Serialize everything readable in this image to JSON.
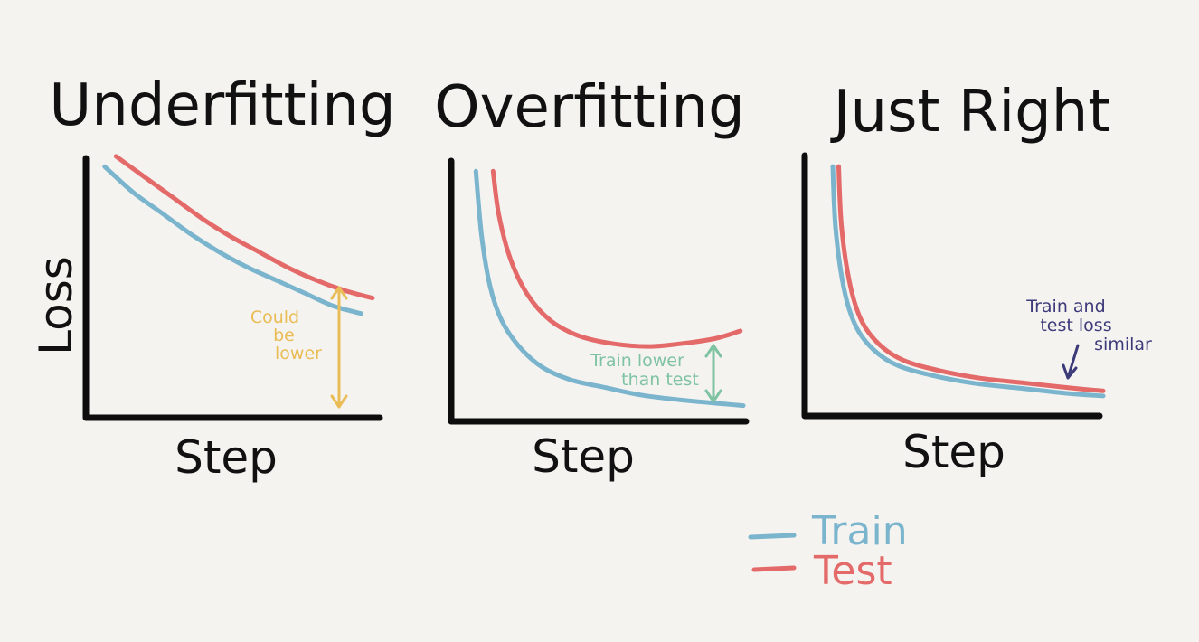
{
  "colors": {
    "background": "#f4f3f0",
    "axis": "#0d0d0d",
    "train": "#7ab4cd",
    "test": "#e46a6a",
    "annotation_underfitting": "#eabc55",
    "annotation_overfitting": "#7fc3a3",
    "annotation_just_right": "#3d3a7a"
  },
  "legend": {
    "placement": "bottom-right",
    "train_label": "Train",
    "test_label": "Test"
  },
  "chart_data": [
    {
      "type": "line",
      "title": "Underfitting",
      "xlabel": "Step",
      "ylabel": "Loss",
      "grid": false,
      "xlim": [
        0,
        10
      ],
      "ylim": [
        0,
        10
      ],
      "series": [
        {
          "name": "Train",
          "color": "#7ab4cd",
          "x": [
            0.5,
            1.5,
            2.5,
            3.5,
            4.5,
            5.5,
            6.5,
            7.5,
            8.5,
            9.5
          ],
          "y": [
            9.5,
            8.5,
            7.7,
            6.9,
            6.2,
            5.6,
            5.1,
            4.6,
            4.1,
            3.8
          ]
        },
        {
          "name": "Test",
          "color": "#e46a6a",
          "x": [
            0.9,
            1.9,
            2.9,
            3.9,
            4.9,
            5.9,
            6.9,
            7.9,
            8.9,
            9.9
          ],
          "y": [
            9.9,
            9.1,
            8.3,
            7.5,
            6.8,
            6.2,
            5.6,
            5.1,
            4.7,
            4.4
          ]
        }
      ],
      "annotation": "Could\nbe\nlower"
    },
    {
      "type": "line",
      "title": "Overfitting",
      "xlabel": "Step",
      "ylabel": "",
      "grid": false,
      "xlim": [
        0,
        10
      ],
      "ylim": [
        0,
        10
      ],
      "series": [
        {
          "name": "Train",
          "color": "#7ab4cd",
          "x": [
            0.7,
            0.9,
            1.2,
            1.6,
            2.2,
            3.0,
            4.0,
            5.2,
            6.5,
            8.0,
            10.0
          ],
          "y": [
            9.5,
            7.0,
            5.0,
            3.7,
            2.7,
            1.9,
            1.4,
            1.1,
            0.8,
            0.6,
            0.4
          ]
        },
        {
          "name": "Test",
          "color": "#e46a6a",
          "x": [
            1.3,
            1.5,
            1.9,
            2.5,
            3.3,
            4.3,
            5.5,
            6.7,
            7.8,
            9.0,
            9.9
          ],
          "y": [
            9.5,
            7.8,
            6.1,
            4.7,
            3.7,
            3.1,
            2.8,
            2.7,
            2.8,
            3.0,
            3.3
          ]
        }
      ],
      "annotation": "Train lower\nthan test"
    },
    {
      "type": "line",
      "title": "Just Right",
      "xlabel": "Step",
      "ylabel": "",
      "grid": false,
      "xlim": [
        0,
        10
      ],
      "ylim": [
        0,
        10
      ],
      "series": [
        {
          "name": "Train",
          "color": "#7ab4cd",
          "x": [
            0.8,
            0.9,
            1.2,
            1.6,
            2.2,
            3.0,
            4.2,
            5.6,
            7.2,
            8.8,
            10.0
          ],
          "y": [
            9.5,
            7.0,
            4.6,
            3.2,
            2.3,
            1.7,
            1.3,
            1.0,
            0.8,
            0.6,
            0.5
          ]
        },
        {
          "name": "Test",
          "color": "#e46a6a",
          "x": [
            1.0,
            1.1,
            1.4,
            1.8,
            2.4,
            3.2,
            4.4,
            5.8,
            7.4,
            9.0,
            10.0
          ],
          "y": [
            9.5,
            7.1,
            4.8,
            3.4,
            2.5,
            1.9,
            1.5,
            1.2,
            1.0,
            0.8,
            0.7
          ]
        }
      ],
      "annotation": "Train and\ntest loss\nsimilar"
    }
  ]
}
